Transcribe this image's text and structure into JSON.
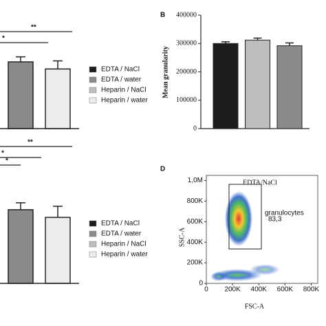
{
  "chart_data": [
    {
      "type": "bar",
      "series": [
        {
          "name": "EDTA / NaCl",
          "color": "#1c1c1c",
          "values": [
            null
          ],
          "errors": [
            null
          ]
        },
        {
          "name": "EDTA / water",
          "color": "#8a8a8a",
          "values": [
            66
          ],
          "errors": [
            5
          ]
        },
        {
          "name": "Heparin / NaCl",
          "color": "#bdbdbd",
          "values": [
            null
          ],
          "errors": [
            null
          ]
        },
        {
          "name": "Heparin / water",
          "color": "#ececec",
          "values": [
            59
          ],
          "errors": [
            8
          ]
        }
      ],
      "ylim": [
        0,
        100
      ],
      "annotations": [
        "**",
        "*"
      ]
    },
    {
      "type": "bar",
      "panel": "B",
      "ylabel": "Mean granularity",
      "categories": [
        null,
        null,
        null
      ],
      "values": [
        300000,
        312000,
        292000
      ],
      "errors": [
        6000,
        7000,
        10000
      ],
      "colors": [
        "#1c1c1c",
        "#bdbdbd",
        "#8a8a8a"
      ],
      "ylim": [
        0,
        400000
      ],
      "yticks": [
        0,
        100000,
        200000,
        300000,
        400000
      ]
    },
    {
      "type": "bar",
      "series": [
        {
          "name": "EDTA / NaCl",
          "color": "#1c1c1c",
          "values": [
            null
          ],
          "errors": [
            null
          ]
        },
        {
          "name": "EDTA / water",
          "color": "#8a8a8a",
          "values": [
            53
          ],
          "errors": [
            5
          ]
        },
        {
          "name": "Heparin / NaCl",
          "color": "#bdbdbd",
          "values": [
            null
          ],
          "errors": [
            null
          ]
        },
        {
          "name": "Heparin / water",
          "color": "#ececec",
          "values": [
            47.5
          ],
          "errors": [
            8
          ]
        }
      ],
      "ylim": [
        0,
        100
      ],
      "annotations": [
        "**",
        "*",
        "*"
      ]
    },
    {
      "type": "flow",
      "panel": "D",
      "title": "EDTA/NaCl",
      "xlabel": "FSC-A",
      "ylabel": "SSC-A",
      "gate": [
        "granulocytes",
        "83,3"
      ],
      "xlim": [
        0,
        850000
      ],
      "ylim": [
        0,
        1050000
      ],
      "xticks": [
        0,
        {
          "value": 200000,
          "label": "200K"
        },
        {
          "value": 400000,
          "label": "400K"
        },
        {
          "value": 600000,
          "label": "600K"
        },
        {
          "value": 800000,
          "label": "800K"
        }
      ],
      "yticks": [
        0,
        {
          "value": 200000,
          "label": "200K"
        },
        {
          "value": 400000,
          "label": "400K"
        },
        {
          "value": 600000,
          "label": "600K"
        },
        {
          "value": 800000,
          "label": "800K"
        },
        {
          "value": 1000000,
          "label": "1,0M"
        }
      ]
    }
  ]
}
